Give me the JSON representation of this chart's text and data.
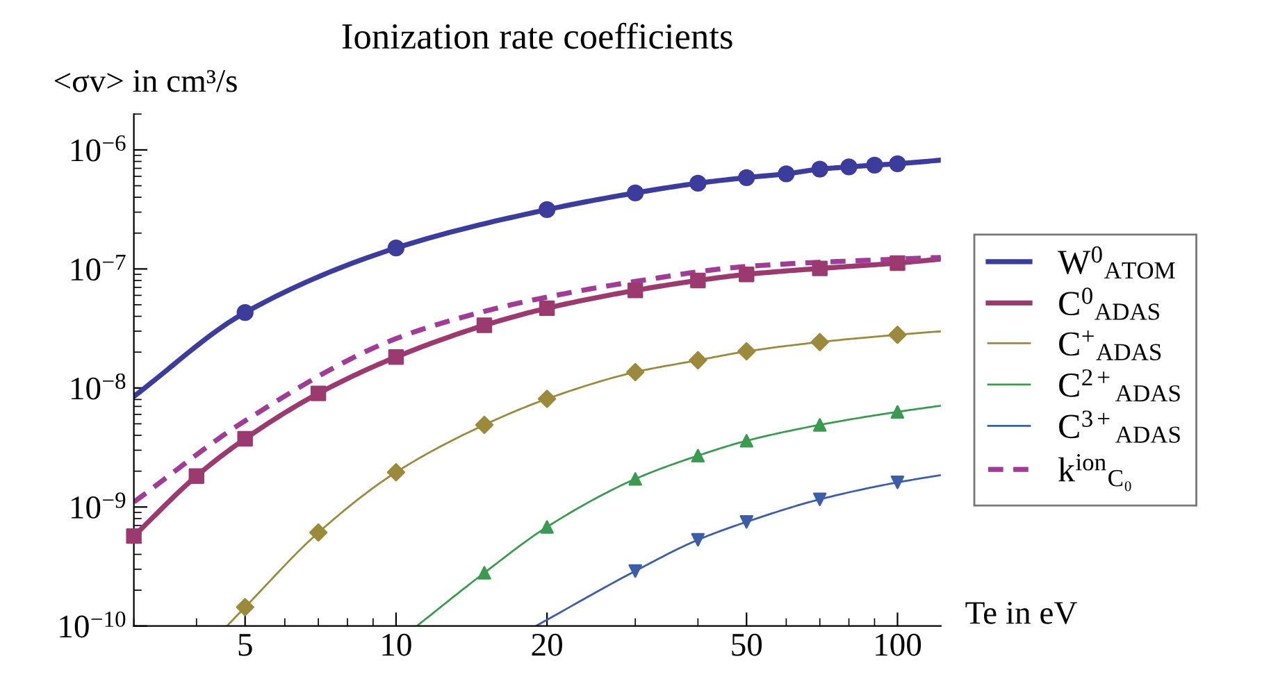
{
  "chart_data": {
    "type": "line",
    "title": "Ionization rate coefficients",
    "ylabel": "<σv> in cm³/s",
    "xlabel": "Te in eV",
    "log": "xy",
    "xlim": [
      3,
      122
    ],
    "ylim": [
      1e-10,
      2e-06
    ],
    "xticks": [
      5,
      10,
      20,
      50,
      100
    ],
    "yticks": [
      {
        "value": 1e-10,
        "label": "10$^{−10}$"
      },
      {
        "value": 1e-09,
        "label": "10$^{−9}$"
      },
      {
        "value": 1e-08,
        "label": "10$^{−8}$"
      },
      {
        "value": 1e-07,
        "label": "10$^{−7}$"
      },
      {
        "value": 1e-06,
        "label": "10$^{−6}$"
      }
    ],
    "grid": false,
    "legend": "right",
    "series": [
      {
        "name": "W$^{0}$$_{ATOM}$",
        "color": "#3c3c9c",
        "line_style": "solid",
        "marker": "none",
        "x": [
          3,
          5,
          10,
          20,
          30,
          40,
          50,
          60,
          70,
          80,
          90,
          100,
          122
        ],
        "values": [
          8.5e-09,
          4.3e-08,
          1.5e-07,
          3.15e-07,
          4.35e-07,
          5.25e-07,
          5.85e-07,
          6.3e-07,
          6.9e-07,
          7.2e-07,
          7.45e-07,
          7.65e-07,
          8.2e-07
        ]
      },
      {
        "name": "C$^{0}$$_{ADAS}$",
        "color": "#9a3a6e",
        "line_style": "solid",
        "marker": "none",
        "x": [
          3,
          4,
          5,
          7,
          10,
          15,
          20,
          30,
          40,
          50,
          70,
          100,
          122
        ],
        "values": [
          5.7e-10,
          1.82e-09,
          3.74e-09,
          9e-09,
          1.82e-08,
          3.36e-08,
          4.68e-08,
          6.6e-08,
          8e-08,
          9e-08,
          1.01e-07,
          1.12e-07,
          1.21e-07
        ]
      },
      {
        "name": "C$^{+}$$_{ADAS}$",
        "color": "#9c8a3c",
        "line_style": "solid",
        "marker": "none",
        "x": [
          4.6,
          5,
          7,
          10,
          15,
          20,
          30,
          40,
          50,
          70,
          100,
          122
        ],
        "values": [
          1e-10,
          1.44e-10,
          6.1e-10,
          1.96e-09,
          4.9e-09,
          8.1e-09,
          1.36e-08,
          1.71e-08,
          2.03e-08,
          2.43e-08,
          2.8e-08,
          2.99e-08
        ]
      },
      {
        "name": "C$^{2+}$$_{ADAS}$",
        "color": "#3a9a50",
        "line_style": "solid",
        "marker": "none",
        "x": [
          11,
          15,
          20,
          30,
          40,
          50,
          70,
          100,
          122
        ],
        "values": [
          1e-10,
          2.8e-10,
          6.8e-10,
          1.72e-09,
          2.7e-09,
          3.6e-09,
          4.9e-09,
          6.3e-09,
          7.1e-09
        ]
      },
      {
        "name": "C$^{3+}$$_{ADAS}$",
        "color": "#3c5ea8",
        "line_style": "solid",
        "marker": "none",
        "x": [
          19,
          30,
          40,
          50,
          70,
          100,
          122
        ],
        "values": [
          1e-10,
          2.9e-10,
          5.3e-10,
          7.5e-10,
          1.16e-09,
          1.61e-09,
          1.85e-09
        ]
      },
      {
        "name": "k$^{ion}$$_{C₀}$",
        "color": "#a03c96",
        "line_style": "dashed",
        "marker": "none",
        "x": [
          3,
          5,
          10,
          15,
          20,
          30,
          50,
          100,
          122
        ],
        "values": [
          1.1e-09,
          5.3e-09,
          2.6e-08,
          4.4e-08,
          5.8e-08,
          7.85e-08,
          1.05e-07,
          1.21e-07,
          1.25e-07
        ]
      },
      {
        "type": "scatter",
        "color": "#3c3c9c",
        "marker": "circle",
        "x": [
          5,
          10,
          20,
          30,
          40,
          50,
          60,
          70,
          80,
          90,
          100
        ],
        "values": [
          4.3e-08,
          1.5e-07,
          3.15e-07,
          4.35e-07,
          5.25e-07,
          5.85e-07,
          6.3e-07,
          6.9e-07,
          7.2e-07,
          7.45e-07,
          7.65e-07
        ]
      },
      {
        "type": "scatter",
        "color": "#9a3a6e",
        "marker": "square",
        "x": [
          3,
          4,
          5,
          7,
          10,
          15,
          20,
          30,
          40,
          50,
          70,
          100
        ],
        "values": [
          5.7e-10,
          1.82e-09,
          3.74e-09,
          9e-09,
          1.82e-08,
          3.36e-08,
          4.68e-08,
          6.6e-08,
          8e-08,
          9e-08,
          1.01e-07,
          1.12e-07
        ]
      },
      {
        "type": "scatter",
        "color": "#9c8a3c",
        "marker": "diamond",
        "x": [
          5,
          7,
          10,
          15,
          20,
          30,
          40,
          50,
          70,
          100
        ],
        "values": [
          1.44e-10,
          6.1e-10,
          1.96e-09,
          4.9e-09,
          8.1e-09,
          1.36e-08,
          1.71e-08,
          2.03e-08,
          2.43e-08,
          2.8e-08
        ]
      },
      {
        "type": "scatter",
        "color": "#3a9a50",
        "marker": "triangle",
        "x": [
          15,
          20,
          30,
          40,
          50,
          70,
          100
        ],
        "values": [
          2.8e-10,
          6.8e-10,
          1.72e-09,
          2.7e-09,
          3.6e-09,
          4.9e-09,
          6.3e-09
        ]
      },
      {
        "type": "scatter",
        "color": "#3c5ea8",
        "marker": "triangle_down",
        "x": [
          30,
          40,
          50,
          70,
          100
        ],
        "values": [
          2.9e-10,
          5.3e-10,
          7.5e-10,
          1.16e-09,
          1.61e-09
        ]
      }
    ]
  }
}
